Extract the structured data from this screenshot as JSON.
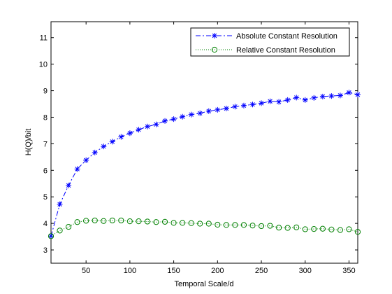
{
  "chart_data": {
    "type": "line",
    "xlabel": "Temporal Scale/d",
    "ylabel": "H(Q)/bit",
    "xlim": [
      10,
      360
    ],
    "ylim": [
      2.5,
      11.6
    ],
    "xticks": [
      50,
      100,
      150,
      200,
      250,
      300,
      350
    ],
    "yticks": [
      3,
      4,
      5,
      6,
      7,
      8,
      9,
      10,
      11
    ],
    "grid": false,
    "legend_position": "top-right",
    "x": [
      10,
      20,
      30,
      40,
      50,
      60,
      70,
      80,
      90,
      100,
      110,
      120,
      130,
      140,
      150,
      160,
      170,
      180,
      190,
      200,
      210,
      220,
      230,
      240,
      250,
      260,
      270,
      280,
      290,
      300,
      310,
      320,
      330,
      340,
      350,
      360
    ],
    "series": [
      {
        "name": "Absolute Constant Resolution",
        "color": "#0000ff",
        "marker": "asterisk",
        "line_style": "dash-dot",
        "values": [
          3.52,
          4.72,
          5.43,
          6.05,
          6.38,
          6.67,
          6.9,
          7.08,
          7.26,
          7.4,
          7.53,
          7.65,
          7.73,
          7.86,
          7.93,
          8.02,
          8.1,
          8.15,
          8.23,
          8.28,
          8.33,
          8.4,
          8.44,
          8.48,
          8.53,
          8.6,
          8.58,
          8.65,
          8.74,
          8.65,
          8.73,
          8.78,
          8.8,
          8.82,
          8.93,
          8.85
        ]
      },
      {
        "name": "Relative Constant Resolution",
        "color": "#008000",
        "marker": "circle",
        "line_style": "dotted",
        "values": [
          3.52,
          3.73,
          3.87,
          4.05,
          4.1,
          4.11,
          4.09,
          4.11,
          4.11,
          4.08,
          4.08,
          4.07,
          4.05,
          4.06,
          4.02,
          4.02,
          4.01,
          3.99,
          3.99,
          3.95,
          3.94,
          3.94,
          3.94,
          3.92,
          3.9,
          3.91,
          3.84,
          3.83,
          3.85,
          3.78,
          3.79,
          3.8,
          3.77,
          3.75,
          3.78,
          3.68
        ]
      }
    ]
  }
}
